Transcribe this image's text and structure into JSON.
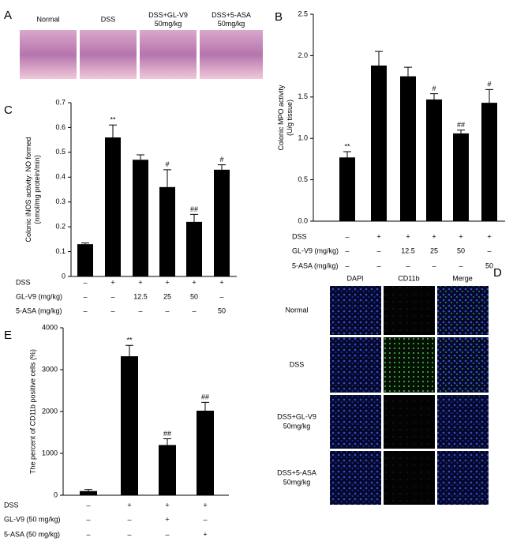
{
  "panel_a": {
    "letter": "A",
    "labels": [
      [
        "Normal"
      ],
      [
        "DSS"
      ],
      [
        "DSS+GL-V9",
        "50mg/kg"
      ],
      [
        "DSS+5-ASA",
        "50mg/kg"
      ]
    ]
  },
  "panel_d": {
    "letter": "D",
    "columns": [
      "DAPI",
      "CD11b",
      "Merge"
    ],
    "rows": [
      [
        "Normal"
      ],
      [
        "DSS"
      ],
      [
        "DSS+GL-V9",
        "50mg/kg"
      ],
      [
        "DSS+5-ASA",
        "50mg/kg"
      ]
    ]
  },
  "chart_data": [
    {
      "type": "bar",
      "letter": "B",
      "ylabel": [
        "Colonic MPO activity",
        "(U/g tissue)"
      ],
      "values": [
        0.77,
        1.88,
        1.75,
        1.47,
        1.06,
        1.43
      ],
      "errors": [
        0.07,
        0.17,
        0.11,
        0.07,
        0.04,
        0.16
      ],
      "annotations": [
        "**",
        null,
        null,
        "#",
        "##",
        "#"
      ],
      "color": "#000000",
      "ylim": [
        0,
        2.5
      ],
      "yticks": [
        {
          "value": 0,
          "label": "0.0"
        },
        0.5,
        {
          "value": 1,
          "label": "1.0"
        },
        1.5,
        {
          "value": 2,
          "label": "2.0"
        },
        2.5
      ],
      "treatment_rows": [
        {
          "label": "DSS",
          "values": [
            "–",
            "+",
            "+",
            "+",
            "+",
            "+"
          ]
        },
        {
          "label": "GL-V9 (mg/kg)",
          "values": [
            "–",
            "–",
            "12.5",
            "25",
            "50",
            "–"
          ]
        },
        {
          "label": "5-ASA (mg/kg)",
          "values": [
            "–",
            "–",
            "–",
            "–",
            "–",
            "50"
          ]
        }
      ]
    },
    {
      "type": "bar",
      "letter": "C",
      "ylabel": [
        "Colonic iNOS activity: NO formed",
        "(nmol/mg protein/min)"
      ],
      "values": [
        0.13,
        0.56,
        0.47,
        0.36,
        0.22,
        0.43
      ],
      "errors": [
        0.005,
        0.05,
        0.02,
        0.07,
        0.03,
        0.02
      ],
      "annotations": [
        null,
        "**",
        null,
        "#",
        "##",
        "#"
      ],
      "color": "#000000",
      "ylim": [
        0,
        0.7
      ],
      "yticks": [
        0,
        0.1,
        0.2,
        0.3,
        0.4,
        0.5,
        0.6,
        0.7
      ],
      "treatment_rows": [
        {
          "label": "DSS",
          "values": [
            "–",
            "+",
            "+",
            "+",
            "+",
            "+"
          ]
        },
        {
          "label": "GL-V9 (mg/kg)",
          "values": [
            "–",
            "–",
            "12.5",
            "25",
            "50",
            "–"
          ]
        },
        {
          "label": "5-ASA (mg/kg)",
          "values": [
            "–",
            "–",
            "–",
            "–",
            "–",
            "50"
          ]
        }
      ]
    },
    {
      "type": "bar",
      "letter": "E",
      "ylabel": [
        "The percent of CD11b positive cells (%)"
      ],
      "values": [
        100,
        3320,
        1200,
        2020
      ],
      "errors": [
        40,
        260,
        150,
        200
      ],
      "annotations": [
        null,
        "**",
        "##",
        "##"
      ],
      "color": "#000000",
      "ylim": [
        0,
        4000
      ],
      "yticks": [
        0,
        1000,
        2000,
        3000,
        4000
      ],
      "treatment_rows": [
        {
          "label": "DSS",
          "values": [
            "–",
            "+",
            "+",
            "+"
          ]
        },
        {
          "label": "GL-V9 (50 mg/kg)",
          "values": [
            "–",
            "–",
            "+",
            "–"
          ]
        },
        {
          "label": "5-ASA (50 mg/kg)",
          "values": [
            "–",
            "–",
            "–",
            "+"
          ]
        }
      ]
    }
  ]
}
